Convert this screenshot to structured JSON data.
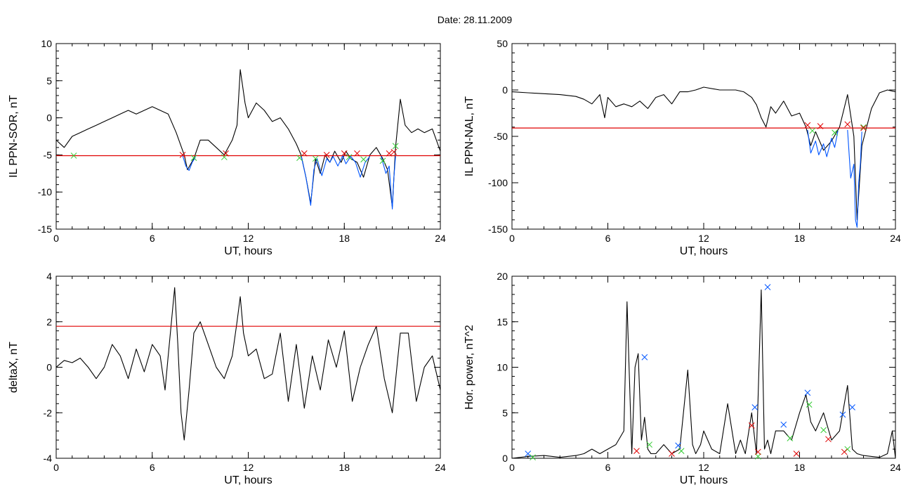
{
  "title": "Date:  28.11.2009",
  "colors": {
    "black": "#000000",
    "red": "#e00000",
    "blue": "#0055ff",
    "green": "#33cc33",
    "axis": "#000000"
  },
  "chart_data": [
    {
      "id": "sor",
      "type": "line",
      "xlabel": "UT, hours",
      "ylabel": "IL PPN-SOR, nT",
      "xlim": [
        0,
        24
      ],
      "ylim": [
        -15,
        10
      ],
      "xticks": [
        0,
        6,
        12,
        18,
        24
      ],
      "yticks": [
        -15,
        -10,
        -5,
        0,
        5,
        10
      ],
      "series": [
        {
          "color": "black",
          "x": [
            0,
            0.5,
            1,
            1.5,
            2,
            2.5,
            3,
            3.5,
            4,
            4.5,
            5,
            5.5,
            6,
            6.5,
            7,
            7.5,
            8,
            8.2,
            8.6,
            9,
            9.5,
            10,
            10.5,
            11,
            11.3,
            11.5,
            11.8,
            12,
            12.5,
            13,
            13.5,
            14,
            14.5,
            15,
            15.3,
            15.6,
            15.9,
            16.2,
            16.5,
            16.8,
            17.1,
            17.4,
            17.8,
            18.1,
            18.4,
            18.8,
            19.2,
            19.6,
            20,
            20.4,
            20.7,
            21,
            21.2,
            21.5,
            21.8,
            22.2,
            22.6,
            23,
            23.5,
            24
          ],
          "y": [
            -3,
            -4,
            -2.5,
            -2,
            -1.5,
            -1,
            -0.5,
            0,
            0.5,
            1,
            0.5,
            1,
            1.5,
            1,
            0.5,
            -2,
            -5,
            -7,
            -5.5,
            -3,
            -3,
            -4,
            -5,
            -3,
            -1,
            6.5,
            2,
            0,
            2,
            1,
            -0.5,
            0,
            -1.5,
            -3.5,
            -5,
            -8,
            -11.5,
            -5.5,
            -7.5,
            -5,
            -6,
            -4.5,
            -6,
            -4.5,
            -5.5,
            -6,
            -8,
            -5,
            -4,
            -5.5,
            -7,
            -12,
            -4,
            2.5,
            -1,
            -2,
            -1.5,
            -2,
            -1.5,
            -4.5
          ]
        },
        {
          "color": "red",
          "x": [
            0,
            24
          ],
          "y": [
            -5.1,
            -5.1
          ]
        },
        {
          "color": "blue",
          "x": [
            7.9,
            8.1,
            8.3,
            8.5,
            8.7
          ],
          "y": [
            -5.1,
            -6.5,
            -7.1,
            -6,
            -5.3
          ]
        },
        {
          "color": "blue",
          "x": [
            15.3,
            15.6,
            15.9,
            16.1,
            16.3,
            16.6,
            16.9,
            17.1,
            17.3,
            17.6,
            17.9,
            18.1,
            18.4,
            18.7,
            19,
            19.3,
            19.6
          ],
          "y": [
            -5.1,
            -8,
            -11.8,
            -7,
            -5.5,
            -7.8,
            -5.5,
            -6,
            -5.2,
            -6.5,
            -5.1,
            -6.2,
            -5.2,
            -6,
            -8,
            -6,
            -5.2
          ]
        },
        {
          "color": "blue",
          "x": [
            20.3,
            20.6,
            20.8,
            21,
            21.1,
            21.2
          ],
          "y": [
            -5.2,
            -7.5,
            -6.5,
            -12.3,
            -8,
            -5.2
          ]
        }
      ],
      "markers": [
        {
          "color": "green",
          "x": [
            1.1,
            8.6,
            10.5,
            15.2,
            16.2,
            18.3,
            19.2,
            20.4,
            21.2
          ],
          "y": [
            -5.1,
            -5.4,
            -5.3,
            -5.4,
            -5.5,
            -5.3,
            -5.6,
            -5.8,
            -3.8
          ]
        },
        {
          "color": "red",
          "x": [
            7.9,
            10.6,
            15.5,
            16.9,
            18.0,
            18.8,
            20.8,
            21.1
          ],
          "y": [
            -5.0,
            -4.8,
            -4.8,
            -5.0,
            -4.8,
            -4.8,
            -4.8,
            -4.6
          ]
        }
      ]
    },
    {
      "id": "nal",
      "type": "line",
      "xlabel": "UT, hours",
      "ylabel": "IL PPN-NAL, nT",
      "xlim": [
        0,
        24
      ],
      "ylim": [
        -150,
        50
      ],
      "xticks": [
        0,
        6,
        12,
        18,
        24
      ],
      "yticks": [
        -150,
        -100,
        -50,
        0,
        50
      ],
      "series": [
        {
          "color": "black",
          "x": [
            0,
            1,
            2,
            3,
            4,
            4.5,
            5,
            5.5,
            5.8,
            6,
            6.5,
            7,
            7.5,
            8,
            8.5,
            9,
            9.5,
            10,
            10.5,
            11,
            11.5,
            12,
            13,
            14,
            14.5,
            15,
            15.3,
            15.6,
            15.9,
            16.2,
            16.5,
            17,
            17.5,
            18,
            18.4,
            18.7,
            19,
            19.5,
            20,
            20.5,
            21,
            21.4,
            21.6,
            21.9,
            22.2,
            22.5,
            23,
            23.5,
            24
          ],
          "y": [
            -2,
            -3,
            -4,
            -5,
            -7,
            -10,
            -15,
            -5,
            -30,
            -8,
            -18,
            -15,
            -18,
            -12,
            -20,
            -8,
            -5,
            -15,
            -2,
            -2,
            0,
            3,
            0,
            0,
            -2,
            -8,
            -16,
            -30,
            -40,
            -18,
            -25,
            -12,
            -28,
            -25,
            -40,
            -60,
            -45,
            -65,
            -55,
            -40,
            -5,
            -50,
            -140,
            -60,
            -40,
            -20,
            -3,
            0,
            -2
          ]
        },
        {
          "color": "red",
          "x": [
            0,
            24
          ],
          "y": [
            -41,
            -41
          ]
        },
        {
          "color": "blue",
          "x": [
            18.5,
            18.7,
            19,
            19.2,
            19.5,
            19.7,
            20,
            20.2,
            20.4
          ],
          "y": [
            -43,
            -68,
            -55,
            -70,
            -58,
            -72,
            -52,
            -62,
            -44
          ]
        },
        {
          "color": "blue",
          "x": [
            21,
            21.2,
            21.4,
            21.5,
            21.6,
            21.7,
            21.8,
            21.9
          ],
          "y": [
            -43,
            -95,
            -80,
            -140,
            -148,
            -100,
            -80,
            -45
          ]
        }
      ],
      "markers": [
        {
          "color": "green",
          "x": [
            18.8,
            20.2,
            22.0
          ],
          "y": [
            -44,
            -46,
            -40
          ]
        },
        {
          "color": "red",
          "x": [
            18.5,
            19.3,
            21.0,
            22.0
          ],
          "y": [
            -38,
            -39,
            -37,
            -41
          ]
        }
      ]
    },
    {
      "id": "deltax",
      "type": "line",
      "xlabel": "UT, hours",
      "ylabel": "deltaX, nT",
      "xlim": [
        0,
        24
      ],
      "ylim": [
        -4,
        4
      ],
      "xticks": [
        0,
        6,
        12,
        18,
        24
      ],
      "yticks": [
        -4,
        -2,
        0,
        2,
        4
      ],
      "series": [
        {
          "color": "black",
          "x": [
            0,
            0.5,
            1,
            1.5,
            2,
            2.5,
            3,
            3.5,
            4,
            4.5,
            5,
            5.5,
            6,
            6.5,
            6.8,
            7,
            7.2,
            7.4,
            7.6,
            7.8,
            8,
            8.3,
            8.6,
            9,
            9.5,
            10,
            10.5,
            11,
            11.3,
            11.5,
            11.7,
            12,
            12.5,
            13,
            13.5,
            14,
            14.5,
            15,
            15.5,
            16,
            16.5,
            17,
            17.5,
            18,
            18.5,
            19,
            19.5,
            20,
            20.5,
            21,
            21.5,
            22,
            22.5,
            23,
            23.5,
            24
          ],
          "y": [
            0,
            0.3,
            0.2,
            0.4,
            0,
            -0.5,
            0,
            1,
            0.5,
            -0.5,
            0.8,
            -0.2,
            1,
            0.5,
            -1,
            0.5,
            2,
            3.5,
            1,
            -2,
            -3.2,
            -1,
            1.5,
            2,
            1,
            0,
            -0.5,
            0.5,
            2,
            3.1,
            1.5,
            0.5,
            0.8,
            -0.5,
            -0.3,
            1.5,
            -1.5,
            1,
            -1.8,
            0.5,
            -1,
            1.2,
            0,
            1.6,
            -1.5,
            0,
            1,
            1.8,
            -0.5,
            -2,
            1.5,
            1.5,
            -1.5,
            0,
            0.5,
            -1
          ]
        },
        {
          "color": "red",
          "x": [
            0,
            24
          ],
          "y": [
            1.8,
            1.8
          ]
        }
      ],
      "markers": []
    },
    {
      "id": "power",
      "type": "line",
      "xlabel": "UT, hours",
      "ylabel": "Hor. power, nT^2",
      "xlim": [
        0,
        24
      ],
      "ylim": [
        0,
        20
      ],
      "xticks": [
        0,
        6,
        12,
        18,
        24
      ],
      "yticks": [
        0,
        5,
        10,
        15,
        20
      ],
      "series": [
        {
          "color": "black",
          "x": [
            0,
            1,
            2,
            3,
            4,
            4.5,
            5,
            5.5,
            6,
            6.5,
            7,
            7.2,
            7.5,
            7.7,
            7.9,
            8.1,
            8.3,
            8.5,
            8.7,
            9,
            9.5,
            10,
            10.5,
            11,
            11.3,
            11.5,
            11.8,
            12,
            12.5,
            13,
            13.5,
            14,
            14.3,
            14.6,
            15,
            15.3,
            15.6,
            15.8,
            16,
            16.2,
            16.5,
            17,
            17.5,
            18,
            18.4,
            18.7,
            19,
            19.5,
            20,
            20.5,
            21,
            21.3,
            21.6,
            22,
            22.5,
            23,
            23.5,
            23.8,
            24
          ],
          "y": [
            0,
            0.2,
            0.3,
            0.1,
            0.3,
            0.5,
            1,
            0.5,
            1,
            1.5,
            3,
            17.2,
            0.5,
            10,
            11.5,
            2,
            4.5,
            1,
            0.5,
            0.5,
            1.5,
            0.5,
            1,
            9.7,
            1.5,
            0.5,
            1.5,
            3,
            1,
            0.5,
            6,
            0.5,
            2,
            0.5,
            5,
            0.5,
            18.5,
            1,
            2,
            0.5,
            3,
            3,
            2,
            5,
            7,
            4,
            3,
            5,
            2,
            3,
            8,
            1,
            0.5,
            0.3,
            0.2,
            0.1,
            0.5,
            3,
            0
          ]
        }
      ],
      "markers": [
        {
          "color": "blue",
          "x": [
            1,
            8.3,
            10.4,
            15.2,
            16.0,
            17.0,
            18.5,
            20.7,
            21.3
          ],
          "y": [
            0.5,
            11.1,
            1.4,
            5.6,
            18.8,
            3.7,
            7.2,
            4.8,
            5.6
          ]
        },
        {
          "color": "green",
          "x": [
            1.3,
            8.6,
            10.6,
            15.4,
            17.4,
            18.6,
            19.5,
            21.0
          ],
          "y": [
            0.1,
            1.5,
            0.8,
            0.2,
            2.2,
            5.9,
            3.1,
            1.0
          ]
        },
        {
          "color": "red",
          "x": [
            7.8,
            10.0,
            15.0,
            15.4,
            17.8,
            19.8,
            20.8
          ],
          "y": [
            0.8,
            0.5,
            3.6,
            0.7,
            0.5,
            2.1,
            0.7
          ]
        }
      ]
    }
  ]
}
